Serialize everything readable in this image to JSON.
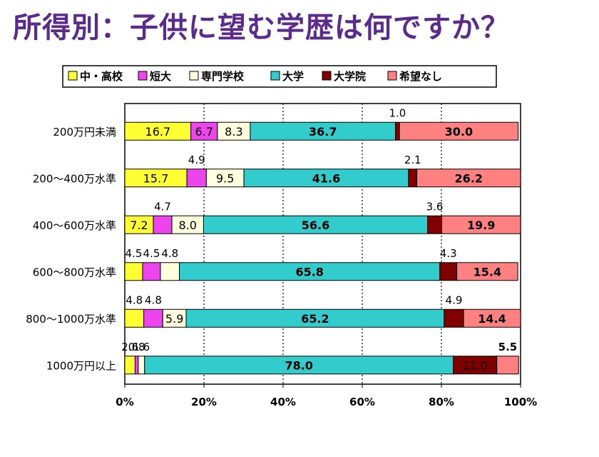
{
  "title": "所得別：子供に望む学歴は何ですか？",
  "chart_data": {
    "type": "bar",
    "stacked": true,
    "orientation": "horizontal",
    "categories": [
      "200万円未満",
      "200～400万水準",
      "400～600万水準",
      "600～800万水準",
      "800～1000万水準",
      "1000万円以上"
    ],
    "series": [
      {
        "name": "中・高校",
        "color": "#ffff33",
        "values": [
          16.7,
          15.7,
          7.2,
          4.5,
          4.8,
          2.6
        ]
      },
      {
        "name": "短大",
        "color": "#ee44ee",
        "values": [
          6.7,
          4.9,
          4.7,
          4.5,
          4.8,
          0.8
        ]
      },
      {
        "name": "専門学校",
        "color": "#ffffdd",
        "values": [
          8.3,
          9.5,
          8.0,
          4.8,
          5.9,
          1.6
        ]
      },
      {
        "name": "大学",
        "color": "#33cccc",
        "values": [
          36.7,
          41.6,
          56.6,
          65.8,
          65.2,
          78.0
        ]
      },
      {
        "name": "大学院",
        "color": "#800000",
        "values": [
          1.0,
          2.1,
          3.6,
          4.3,
          4.9,
          11.0
        ]
      },
      {
        "name": "希望なし",
        "color": "#ff8080",
        "values": [
          30.0,
          26.2,
          19.9,
          15.4,
          14.4,
          5.5
        ]
      }
    ],
    "xlim": [
      0,
      100
    ],
    "x_ticks": [
      "0%",
      "20%",
      "40%",
      "60%",
      "80%",
      "100%"
    ],
    "legend_position": "top",
    "grid": "vertical"
  }
}
